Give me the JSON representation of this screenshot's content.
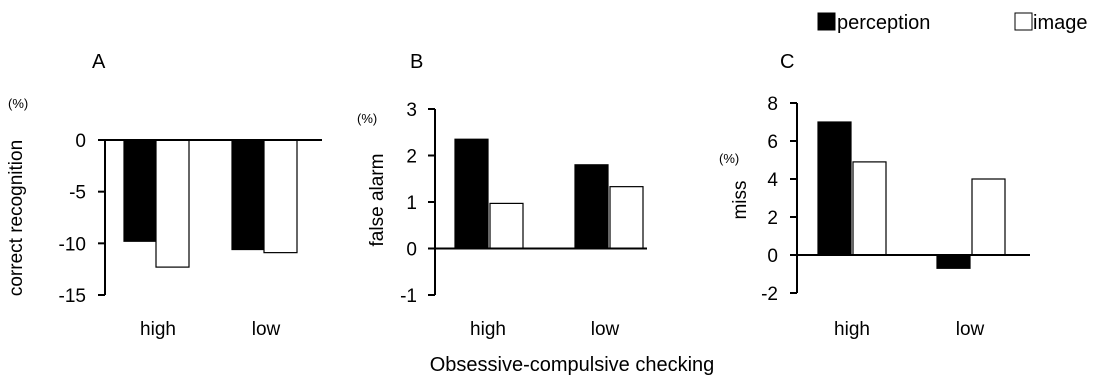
{
  "legend": {
    "placement": "top-right",
    "items": [
      {
        "label": "perception",
        "color": "#000000"
      },
      {
        "label": "image",
        "color": "#ffffff"
      }
    ]
  },
  "xaxis_title": "Obsessive-compulsive checking",
  "chart_data": [
    {
      "type": "bar",
      "panel": "A",
      "unit": "(%)",
      "ylabel": "correct recognition",
      "categories": [
        "high",
        "low"
      ],
      "series": [
        {
          "name": "perception",
          "values": [
            -9.8,
            -10.6
          ]
        },
        {
          "name": "image",
          "values": [
            -12.3,
            -10.9
          ]
        }
      ],
      "ylim": [
        -15,
        0
      ],
      "yticks": [
        "0",
        "-5",
        "-10",
        "-15"
      ],
      "ytick_values": [
        0,
        -5,
        -10,
        -15
      ],
      "grid": false
    },
    {
      "type": "bar",
      "panel": "B",
      "unit": "(%)",
      "ylabel": "false alarm",
      "categories": [
        "high",
        "low"
      ],
      "series": [
        {
          "name": "perception",
          "values": [
            2.35,
            1.8
          ]
        },
        {
          "name": "image",
          "values": [
            0.97,
            1.33
          ]
        }
      ],
      "ylim": [
        -1,
        3
      ],
      "yticks": [
        "3",
        "2",
        "1",
        "0",
        "-1"
      ],
      "ytick_values": [
        3,
        2,
        1,
        0,
        -1
      ],
      "grid": false
    },
    {
      "type": "bar",
      "panel": "C",
      "unit": "(%)",
      "ylabel": "miss",
      "categories": [
        "high",
        "low"
      ],
      "series": [
        {
          "name": "perception",
          "values": [
            7.0,
            -0.7
          ]
        },
        {
          "name": "image",
          "values": [
            4.9,
            4.0
          ]
        }
      ],
      "ylim": [
        -2,
        8
      ],
      "yticks": [
        "8",
        "6",
        "4",
        "2",
        "0",
        "-2"
      ],
      "ytick_values": [
        8,
        6,
        4,
        2,
        0,
        -2
      ],
      "grid": false
    }
  ]
}
